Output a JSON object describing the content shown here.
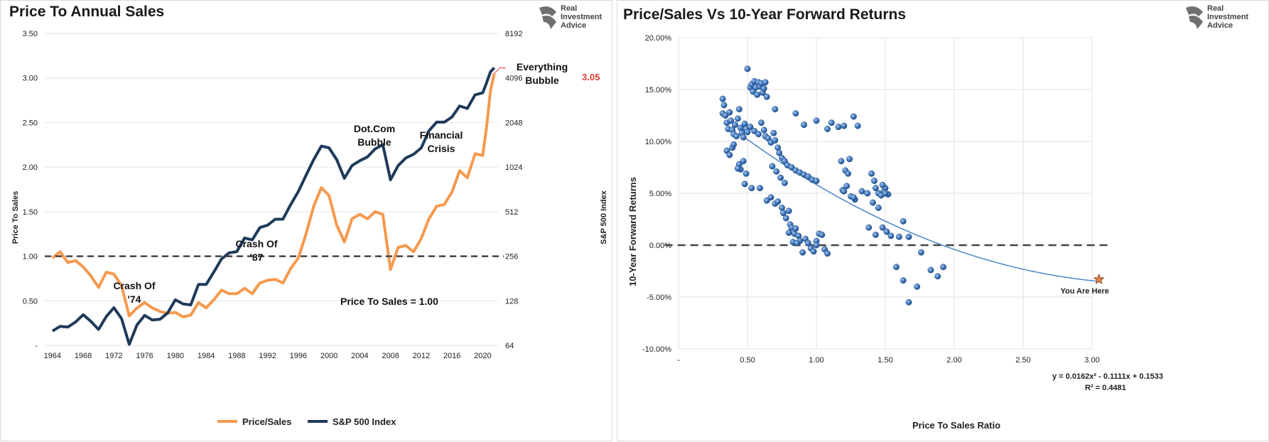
{
  "logo": {
    "line1": "Real",
    "line2": "Investment",
    "line3": "Advice"
  },
  "chart_data": [
    {
      "type": "line",
      "title": "Price To Annual Sales",
      "ylabel": "Price To Sales",
      "y2label": "S&P 500 Index",
      "ylim": [
        0,
        3.5
      ],
      "y2lim": [
        64,
        8192
      ],
      "y2scale": "log2",
      "xlim": [
        1963,
        2022
      ],
      "x_ticks": [
        "1964",
        "1968",
        "1972",
        "1976",
        "1980",
        "1984",
        "1988",
        "1992",
        "1996",
        "2000",
        "2004",
        "2008",
        "2012",
        "2016",
        "2020"
      ],
      "y_ticks": [
        "-",
        "0.50",
        "1.00",
        "1.50",
        "2.00",
        "2.50",
        "3.00",
        "3.50"
      ],
      "y2_ticks": [
        "64",
        "128",
        "256",
        "512",
        "1024",
        "2048",
        "4096",
        "8192"
      ],
      "grid": "horizontal",
      "legend_position": "bottom",
      "reference_line": {
        "y": 1.0,
        "label": "Price To Sales = 1.00"
      },
      "last_value_label": "3.05",
      "annotations": [
        {
          "lines": [
            "Crash Of",
            "'74"
          ]
        },
        {
          "lines": [
            "Crash Of",
            "'87"
          ]
        },
        {
          "lines": [
            "Dot.Com",
            "Bubble"
          ]
        },
        {
          "lines": [
            "Financial",
            "Crisis"
          ]
        },
        {
          "lines": [
            "Everything",
            "Bubble"
          ]
        }
      ],
      "series": [
        {
          "name": "Price/Sales",
          "axis": "left",
          "color": "#f5994e",
          "x": [
            1964,
            1965,
            1966,
            1967,
            1968,
            1969,
            1970,
            1971,
            1972,
            1973,
            1974,
            1975,
            1976,
            1977,
            1978,
            1979,
            1980,
            1981,
            1982,
            1983,
            1984,
            1985,
            1986,
            1987,
            1988,
            1989,
            1990,
            1991,
            1992,
            1993,
            1994,
            1995,
            1996,
            1997,
            1998,
            1999,
            2000,
            2001,
            2002,
            2003,
            2004,
            2005,
            2006,
            2007,
            2008,
            2009,
            2010,
            2011,
            2012,
            2013,
            2014,
            2015,
            2016,
            2017,
            2018,
            2019,
            2020,
            2020.5,
            2021,
            2021.5
          ],
          "values": [
            0.98,
            1.05,
            0.93,
            0.95,
            0.88,
            0.78,
            0.65,
            0.82,
            0.8,
            0.67,
            0.33,
            0.42,
            0.48,
            0.42,
            0.38,
            0.36,
            0.37,
            0.32,
            0.34,
            0.48,
            0.42,
            0.51,
            0.62,
            0.58,
            0.58,
            0.64,
            0.58,
            0.7,
            0.73,
            0.74,
            0.7,
            0.86,
            0.98,
            1.25,
            1.56,
            1.77,
            1.68,
            1.35,
            1.16,
            1.42,
            1.47,
            1.42,
            1.5,
            1.47,
            0.85,
            1.1,
            1.12,
            1.05,
            1.2,
            1.42,
            1.56,
            1.58,
            1.72,
            1.96,
            1.88,
            2.15,
            2.13,
            2.45,
            2.85,
            3.05
          ]
        },
        {
          "name": "S&P 500 Index",
          "axis": "right",
          "color": "#1f3a5a",
          "x": [
            1964,
            1965,
            1966,
            1967,
            1968,
            1969,
            1970,
            1971,
            1972,
            1973,
            1974,
            1975,
            1976,
            1977,
            1978,
            1979,
            1980,
            1981,
            1982,
            1983,
            1984,
            1985,
            1986,
            1987,
            1988,
            1989,
            1990,
            1991,
            1992,
            1993,
            1994,
            1995,
            1996,
            1997,
            1998,
            1999,
            2000,
            2001,
            2002,
            2003,
            2004,
            2005,
            2006,
            2007,
            2008,
            2009,
            2010,
            2011,
            2012,
            2013,
            2014,
            2015,
            2016,
            2017,
            2018,
            2019,
            2020,
            2020.5,
            2021,
            2021.5
          ],
          "values": [
            80,
            86,
            85,
            92,
            103,
            93,
            82,
            100,
            115,
            97,
            65,
            88,
            102,
            95,
            96,
            106,
            130,
            122,
            120,
            165,
            165,
            200,
            245,
            270,
            275,
            340,
            330,
            400,
            415,
            455,
            455,
            570,
            700,
            900,
            1150,
            1420,
            1380,
            1150,
            860,
            1050,
            1130,
            1200,
            1360,
            1450,
            840,
            1050,
            1180,
            1250,
            1380,
            1800,
            2060,
            2060,
            2230,
            2650,
            2550,
            3150,
            3250,
            3800,
            4500,
            4800
          ]
        }
      ]
    },
    {
      "type": "scatter",
      "title": "Price/Sales Vs 10-Year Forward Returns",
      "xlabel": "Price To Sales Ratio",
      "ylabel": "10-Year Forward Returns",
      "xlim": [
        0,
        3.0
      ],
      "ylim": [
        -0.1,
        0.2
      ],
      "x_ticks": [
        "-",
        "0.50",
        "1.00",
        "1.50",
        "2.00",
        "2.50",
        "3.00"
      ],
      "y_ticks": [
        "-10.00%",
        "-5.00%",
        "0.00%",
        "5.00%",
        "10.00%",
        "15.00%",
        "20.00%"
      ],
      "grid": "both",
      "reference_line": {
        "y": 0.0
      },
      "trendline": {
        "type": "polynomial",
        "a": 0.0162,
        "b": -0.1111,
        "c": 0.1533
      },
      "equation_text": "y = 0.0162x² - 0.1111x + 0.1533",
      "r2_text": "R² = 0.4481",
      "marker_label": "You Are Here",
      "marker": {
        "x": 3.05,
        "y": -0.033
      },
      "points": [
        [
          0.32,
          0.141
        ],
        [
          0.33,
          0.135
        ],
        [
          0.32,
          0.127
        ],
        [
          0.34,
          0.125
        ],
        [
          0.35,
          0.118
        ],
        [
          0.36,
          0.112
        ],
        [
          0.37,
          0.128
        ],
        [
          0.38,
          0.12
        ],
        [
          0.39,
          0.111
        ],
        [
          0.4,
          0.107
        ],
        [
          0.41,
          0.116
        ],
        [
          0.42,
          0.105
        ],
        [
          0.43,
          0.122
        ],
        [
          0.44,
          0.131
        ],
        [
          0.45,
          0.113
        ],
        [
          0.46,
          0.108
        ],
        [
          0.47,
          0.104
        ],
        [
          0.48,
          0.117
        ],
        [
          0.49,
          0.112
        ],
        [
          0.5,
          0.109
        ],
        [
          0.35,
          0.091
        ],
        [
          0.37,
          0.087
        ],
        [
          0.39,
          0.094
        ],
        [
          0.4,
          0.097
        ],
        [
          0.44,
          0.078
        ],
        [
          0.45,
          0.073
        ],
        [
          0.47,
          0.081
        ],
        [
          0.49,
          0.069
        ],
        [
          0.43,
          0.074
        ],
        [
          0.48,
          0.059
        ],
        [
          0.5,
          0.17
        ],
        [
          0.52,
          0.152
        ],
        [
          0.53,
          0.155
        ],
        [
          0.54,
          0.148
        ],
        [
          0.55,
          0.158
        ],
        [
          0.56,
          0.152
        ],
        [
          0.57,
          0.145
        ],
        [
          0.58,
          0.157
        ],
        [
          0.59,
          0.153
        ],
        [
          0.6,
          0.156
        ],
        [
          0.61,
          0.147
        ],
        [
          0.62,
          0.151
        ],
        [
          0.63,
          0.157
        ],
        [
          0.64,
          0.143
        ],
        [
          0.52,
          0.114
        ],
        [
          0.55,
          0.11
        ],
        [
          0.58,
          0.107
        ],
        [
          0.6,
          0.118
        ],
        [
          0.62,
          0.111
        ],
        [
          0.63,
          0.105
        ],
        [
          0.53,
          0.055
        ],
        [
          0.59,
          0.055
        ],
        [
          0.64,
          0.043
        ],
        [
          0.67,
          0.046
        ],
        [
          0.7,
          0.04
        ],
        [
          0.72,
          0.042
        ],
        [
          0.75,
          0.036
        ],
        [
          0.76,
          0.031
        ],
        [
          0.78,
          0.026
        ],
        [
          0.8,
          0.033
        ],
        [
          0.81,
          0.02
        ],
        [
          0.82,
          0.017
        ],
        [
          0.84,
          0.011
        ],
        [
          0.85,
          0.016
        ],
        [
          0.87,
          0.009
        ],
        [
          0.88,
          0.004
        ],
        [
          0.9,
          -0.007
        ],
        [
          0.92,
          0.006
        ],
        [
          0.94,
          0.002
        ],
        [
          0.96,
          -0.003
        ],
        [
          0.98,
          -0.006
        ],
        [
          1.0,
          0.004
        ],
        [
          1.02,
          0.011
        ],
        [
          1.04,
          0.01
        ],
        [
          1.06,
          -0.004
        ],
        [
          1.08,
          -0.008
        ],
        [
          0.8,
          0.012
        ],
        [
          0.83,
          0.003
        ],
        [
          0.86,
          0.002
        ],
        [
          1.0,
          0.0
        ],
        [
          0.65,
          0.103
        ],
        [
          0.67,
          0.099
        ],
        [
          0.69,
          0.108
        ],
        [
          0.7,
          0.101
        ],
        [
          0.72,
          0.094
        ],
        [
          0.73,
          0.089
        ],
        [
          0.75,
          0.084
        ],
        [
          0.77,
          0.081
        ],
        [
          0.79,
          0.077
        ],
        [
          0.82,
          0.075
        ],
        [
          0.85,
          0.072
        ],
        [
          0.88,
          0.07
        ],
        [
          0.91,
          0.068
        ],
        [
          0.94,
          0.066
        ],
        [
          0.97,
          0.063
        ],
        [
          1.0,
          0.062
        ],
        [
          0.68,
          0.076
        ],
        [
          0.71,
          0.071
        ],
        [
          0.74,
          0.065
        ],
        [
          0.77,
          0.06
        ],
        [
          0.7,
          0.131
        ],
        [
          0.85,
          0.127
        ],
        [
          0.91,
          0.116
        ],
        [
          1.0,
          0.12
        ],
        [
          1.08,
          0.112
        ],
        [
          1.11,
          0.118
        ],
        [
          1.16,
          0.114
        ],
        [
          1.2,
          0.115
        ],
        [
          1.27,
          0.124
        ],
        [
          1.3,
          0.115
        ],
        [
          1.18,
          0.081
        ],
        [
          1.21,
          0.072
        ],
        [
          1.23,
          0.069
        ],
        [
          1.24,
          0.083
        ],
        [
          1.19,
          0.053
        ],
        [
          1.22,
          0.057
        ],
        [
          1.25,
          0.047
        ],
        [
          1.28,
          0.044
        ],
        [
          1.2,
          0.052
        ],
        [
          1.27,
          0.046
        ],
        [
          1.37,
          0.05
        ],
        [
          1.4,
          0.069
        ],
        [
          1.42,
          0.062
        ],
        [
          1.43,
          0.055
        ],
        [
          1.45,
          0.05
        ],
        [
          1.47,
          0.048
        ],
        [
          1.49,
          0.052
        ],
        [
          1.5,
          0.055
        ],
        [
          1.52,
          0.049
        ],
        [
          1.41,
          0.041
        ],
        [
          1.45,
          0.036
        ],
        [
          1.38,
          0.017
        ],
        [
          1.43,
          0.01
        ],
        [
          1.48,
          0.017
        ],
        [
          1.51,
          0.013
        ],
        [
          1.54,
          0.009
        ],
        [
          1.6,
          0.008
        ],
        [
          1.63,
          0.023
        ],
        [
          1.67,
          0.008
        ],
        [
          1.58,
          -0.021
        ],
        [
          1.63,
          -0.034
        ],
        [
          1.67,
          -0.055
        ],
        [
          1.73,
          -0.04
        ],
        [
          1.76,
          -0.007
        ],
        [
          1.83,
          -0.024
        ],
        [
          1.88,
          -0.03
        ],
        [
          1.92,
          -0.021
        ],
        [
          1.5,
          0.05
        ],
        [
          1.48,
          0.058
        ],
        [
          1.33,
          0.052
        ]
      ]
    }
  ]
}
